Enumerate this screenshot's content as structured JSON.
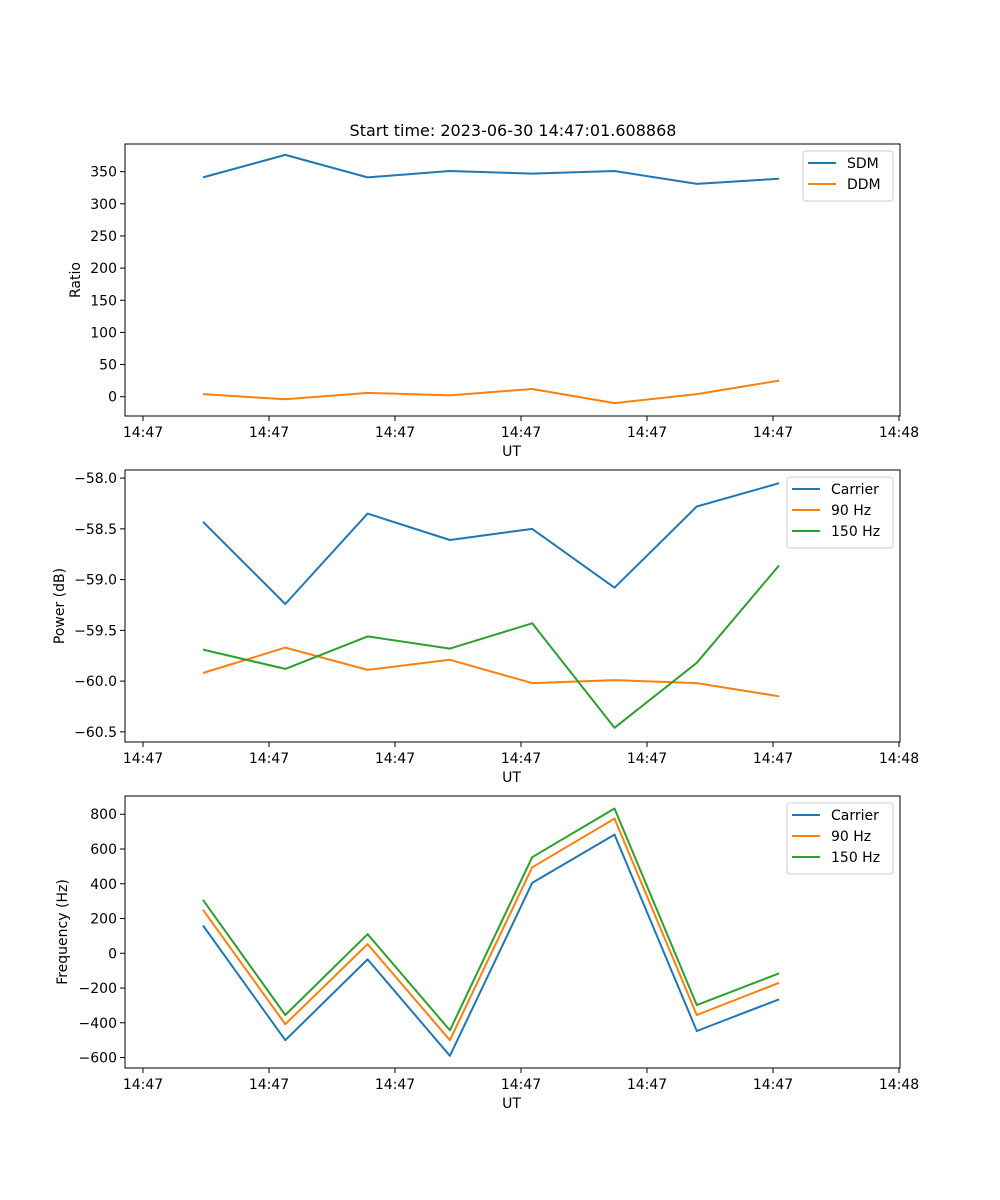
{
  "figure": {
    "title": "Start time: 2023-06-30 14:47:01.608868"
  },
  "chart_data": [
    {
      "type": "line",
      "title": "Start time: 2023-06-30 14:47:01.608868",
      "xlabel": "UT",
      "ylabel": "Ratio",
      "x_tick_labels": [
        "14:47",
        "14:47",
        "14:47",
        "14:47",
        "14:47",
        "14:47",
        "14:48"
      ],
      "y_ticks": [
        0,
        50,
        100,
        150,
        200,
        250,
        300,
        350
      ],
      "ylim": [
        -30,
        393
      ],
      "grid": false,
      "legend_position": "top-right",
      "series": [
        {
          "name": "SDM",
          "color": "#1f77b4",
          "values": [
            341,
            376,
            341,
            351,
            347,
            351,
            331,
            339
          ]
        },
        {
          "name": "DDM",
          "color": "#ff7f0e",
          "values": [
            4,
            -4,
            6,
            2,
            12,
            -10,
            4,
            25
          ]
        }
      ]
    },
    {
      "type": "line",
      "title": "",
      "xlabel": "UT",
      "ylabel": "Power (dB)",
      "x_tick_labels": [
        "14:47",
        "14:47",
        "14:47",
        "14:47",
        "14:47",
        "14:47",
        "14:48"
      ],
      "y_ticks": [
        -60.5,
        -60.0,
        -59.5,
        -59.0,
        -58.5,
        -58.0
      ],
      "y_tick_labels": [
        "−60.5",
        "−60.0",
        "−59.5",
        "−59.0",
        "−58.5",
        "−58.0"
      ],
      "ylim": [
        -60.6,
        -57.92
      ],
      "grid": false,
      "legend_position": "top-right",
      "series": [
        {
          "name": "Carrier",
          "color": "#1f77b4",
          "values": [
            -58.43,
            -59.24,
            -58.35,
            -58.61,
            -58.5,
            -59.08,
            -58.28,
            -58.05
          ]
        },
        {
          "name": "90 Hz",
          "color": "#ff7f0e",
          "values": [
            -59.92,
            -59.67,
            -59.89,
            -59.79,
            -60.02,
            -59.99,
            -60.02,
            -60.15
          ]
        },
        {
          "name": "150 Hz",
          "color": "#2ca02c",
          "values": [
            -59.69,
            -59.88,
            -59.56,
            -59.68,
            -59.43,
            -60.46,
            -59.82,
            -58.86
          ]
        }
      ]
    },
    {
      "type": "line",
      "title": "",
      "xlabel": "UT",
      "ylabel": "Frequency (Hz)",
      "x_tick_labels": [
        "14:47",
        "14:47",
        "14:47",
        "14:47",
        "14:47",
        "14:47",
        "14:48"
      ],
      "y_ticks": [
        -600,
        -400,
        -200,
        0,
        200,
        400,
        600,
        800
      ],
      "y_tick_labels": [
        "−600",
        "−400",
        "−200",
        "0",
        "200",
        "400",
        "600",
        "800"
      ],
      "ylim": [
        -660,
        905
      ],
      "grid": false,
      "legend_position": "top-right",
      "series": [
        {
          "name": "Carrier",
          "color": "#1f77b4",
          "values": [
            160,
            -500,
            -35,
            -590,
            405,
            683,
            -447,
            -265
          ]
        },
        {
          "name": "90 Hz",
          "color": "#ff7f0e",
          "values": [
            250,
            -408,
            53,
            -500,
            495,
            775,
            -355,
            -170
          ]
        },
        {
          "name": "150 Hz",
          "color": "#2ca02c",
          "values": [
            307,
            -355,
            110,
            -443,
            553,
            833,
            -298,
            -115
          ]
        }
      ]
    }
  ]
}
